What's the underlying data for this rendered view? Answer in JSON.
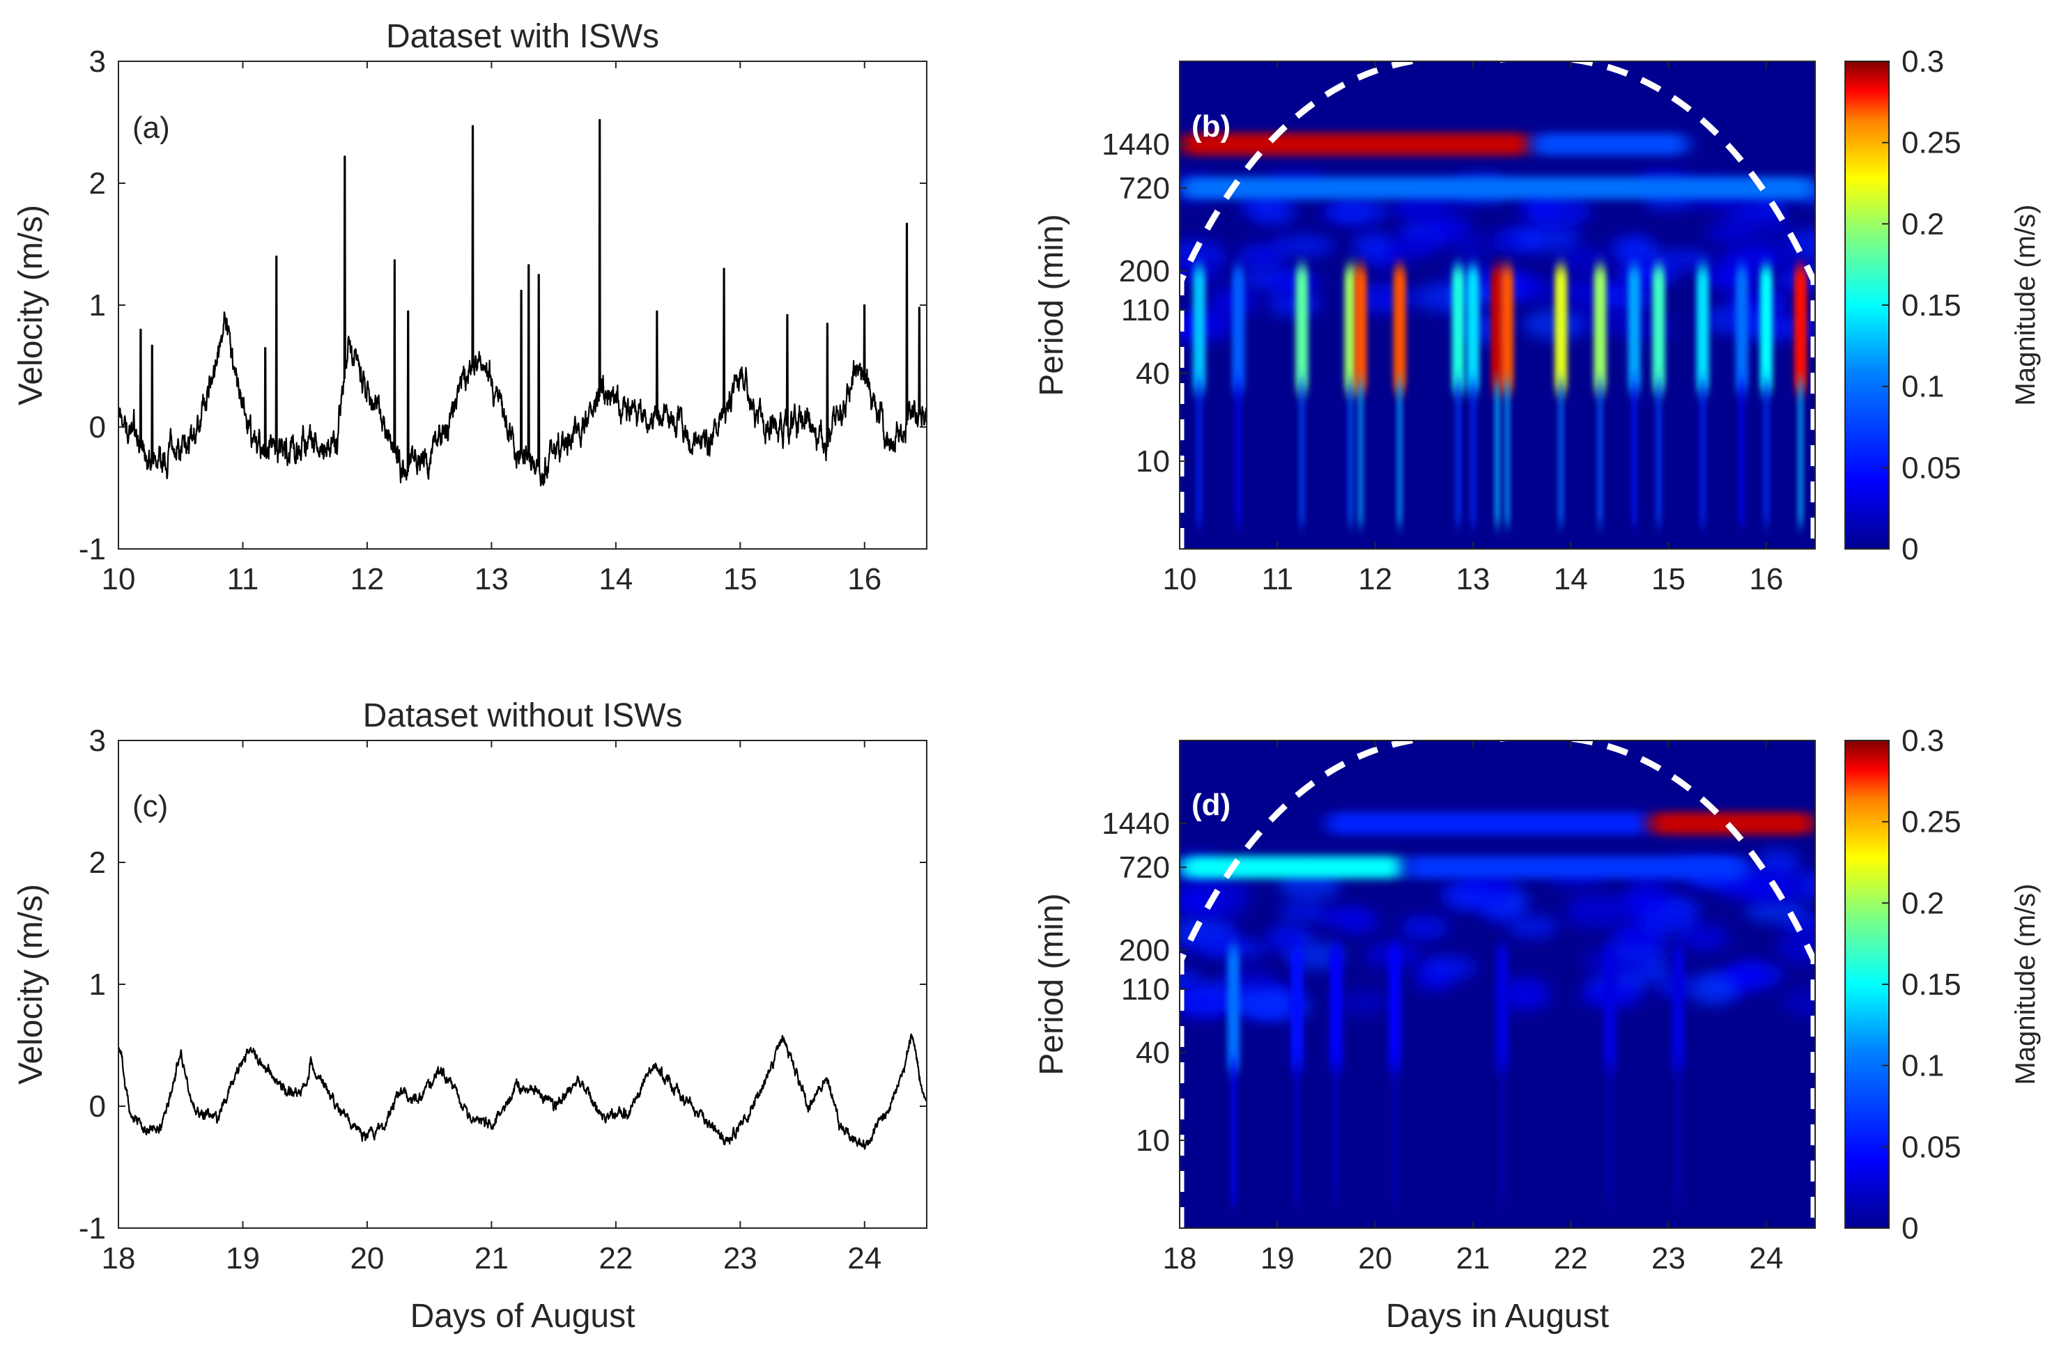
{
  "chart_data": [
    {
      "id": "a",
      "type": "line",
      "title": "Dataset with ISWs",
      "panel_label": "(a)",
      "xlabel": "",
      "ylabel": "Velocity (m/s)",
      "xlim": [
        10,
        16.5
      ],
      "ylim": [
        -1,
        3
      ],
      "xticks": [
        10,
        11,
        12,
        13,
        14,
        15,
        16
      ],
      "yticks": [
        -1,
        0,
        1,
        2,
        3
      ],
      "line_color": "#000000",
      "baseline": [
        [
          10.0,
          0.15
        ],
        [
          10.3,
          -0.3
        ],
        [
          10.6,
          -0.15
        ],
        [
          10.85,
          0.8
        ],
        [
          11.1,
          -0.2
        ],
        [
          11.5,
          -0.15
        ],
        [
          11.75,
          -0.2
        ],
        [
          11.85,
          0.65
        ],
        [
          12.3,
          -0.4
        ],
        [
          12.6,
          -0.1
        ],
        [
          12.9,
          0.6
        ],
        [
          13.2,
          -0.2
        ],
        [
          13.4,
          -0.3
        ],
        [
          13.7,
          -0.05
        ],
        [
          13.9,
          0.3
        ],
        [
          14.25,
          0.05
        ],
        [
          14.5,
          0.1
        ],
        [
          14.75,
          -0.2
        ],
        [
          15.0,
          0.45
        ],
        [
          15.2,
          -0.05
        ],
        [
          15.5,
          0.1
        ],
        [
          15.7,
          -0.15
        ],
        [
          15.95,
          0.5
        ],
        [
          16.2,
          -0.1
        ],
        [
          16.5,
          0.15
        ]
      ],
      "noise": [
        0.14,
        0.06
      ],
      "spikes": [
        [
          10.18,
          0.8
        ],
        [
          10.27,
          0.67
        ],
        [
          11.18,
          0.65
        ],
        [
          11.27,
          1.4
        ],
        [
          11.82,
          2.22
        ],
        [
          12.22,
          1.37
        ],
        [
          12.33,
          0.95
        ],
        [
          12.85,
          2.47
        ],
        [
          13.24,
          1.12
        ],
        [
          13.3,
          1.33
        ],
        [
          13.38,
          1.25
        ],
        [
          13.87,
          2.52
        ],
        [
          14.33,
          0.95
        ],
        [
          14.87,
          1.3
        ],
        [
          15.38,
          0.92
        ],
        [
          15.7,
          0.85
        ],
        [
          16.0,
          1.0
        ],
        [
          16.34,
          1.67
        ],
        [
          16.44,
          0.98
        ]
      ]
    },
    {
      "id": "b",
      "type": "heatmap",
      "title": "",
      "panel_label": "(b)",
      "xlabel": "",
      "ylabel": "Period (min)",
      "xlim": [
        10,
        16.5
      ],
      "xticks": [
        10,
        11,
        12,
        13,
        14,
        15,
        16
      ],
      "period_ticks": [
        1440,
        720,
        200,
        110,
        40,
        10
      ],
      "colorbar": {
        "label": "Magnitude (m/s)",
        "ticks": [
          "0",
          "0.05",
          "0.1",
          "0.15",
          "0.2",
          "0.25",
          "0.3"
        ],
        "range": [
          0,
          0.3
        ]
      },
      "colormap": [
        "#00008f",
        "#0000ff",
        "#00ffff",
        "#ffff00",
        "#ff0000",
        "#800000"
      ],
      "cone_color": "#ffffff",
      "bands": [
        {
          "x0": 10.0,
          "x1": 13.6,
          "period": 1440,
          "magnitude": 0.29
        },
        {
          "x0": 13.6,
          "x1": 15.2,
          "period": 1440,
          "magnitude": 0.08
        },
        {
          "x0": 10.0,
          "x1": 16.5,
          "period": 720,
          "magnitude": 0.1
        }
      ],
      "bursts": [
        [
          10.2,
          0.13
        ],
        [
          10.6,
          0.09
        ],
        [
          11.25,
          0.18
        ],
        [
          11.75,
          0.2
        ],
        [
          11.85,
          0.27
        ],
        [
          12.25,
          0.27
        ],
        [
          12.85,
          0.16
        ],
        [
          13.0,
          0.14
        ],
        [
          13.25,
          0.29
        ],
        [
          13.35,
          0.27
        ],
        [
          13.9,
          0.22
        ],
        [
          14.3,
          0.2
        ],
        [
          14.65,
          0.12
        ],
        [
          14.9,
          0.17
        ],
        [
          15.35,
          0.14
        ],
        [
          15.75,
          0.1
        ],
        [
          16.0,
          0.15
        ],
        [
          16.35,
          0.28
        ]
      ]
    },
    {
      "id": "c",
      "type": "line",
      "title": "Dataset without ISWs",
      "panel_label": "(c)",
      "xlabel": "Days of August",
      "ylabel": "Velocity (m/s)",
      "xlim": [
        18,
        24.5
      ],
      "ylim": [
        -1,
        3
      ],
      "xticks": [
        18,
        19,
        20,
        21,
        22,
        23,
        24
      ],
      "yticks": [
        -1,
        0,
        1,
        2,
        3
      ],
      "line_color": "#000000",
      "baseline": [
        [
          18.0,
          0.5
        ],
        [
          18.1,
          -0.05
        ],
        [
          18.2,
          -0.2
        ],
        [
          18.35,
          -0.15
        ],
        [
          18.5,
          0.45
        ],
        [
          18.6,
          0.0
        ],
        [
          18.8,
          -0.1
        ],
        [
          19.05,
          0.5
        ],
        [
          19.3,
          0.15
        ],
        [
          19.5,
          0.1
        ],
        [
          19.55,
          0.35
        ],
        [
          19.75,
          0.0
        ],
        [
          20.0,
          -0.25
        ],
        [
          20.15,
          -0.15
        ],
        [
          20.25,
          0.1
        ],
        [
          20.4,
          0.05
        ],
        [
          20.6,
          0.3
        ],
        [
          20.8,
          -0.05
        ],
        [
          21.0,
          -0.15
        ],
        [
          21.2,
          0.15
        ],
        [
          21.4,
          0.1
        ],
        [
          21.5,
          0.0
        ],
        [
          21.7,
          0.2
        ],
        [
          21.9,
          -0.1
        ],
        [
          22.1,
          -0.05
        ],
        [
          22.3,
          0.35
        ],
        [
          22.5,
          0.1
        ],
        [
          22.7,
          -0.1
        ],
        [
          22.9,
          -0.3
        ],
        [
          23.1,
          0.0
        ],
        [
          23.35,
          0.55
        ],
        [
          23.55,
          0.0
        ],
        [
          23.7,
          0.25
        ],
        [
          23.8,
          -0.15
        ],
        [
          24.0,
          -0.35
        ],
        [
          24.2,
          0.0
        ],
        [
          24.3,
          0.25
        ],
        [
          24.38,
          0.6
        ],
        [
          24.45,
          0.2
        ],
        [
          24.5,
          0.05
        ]
      ],
      "noise": [
        0.05,
        0.03
      ],
      "spikes": []
    },
    {
      "id": "d",
      "type": "heatmap",
      "title": "",
      "panel_label": "(d)",
      "xlabel": "Days in August",
      "ylabel": "Period (min)",
      "xlim": [
        18,
        24.5
      ],
      "xticks": [
        18,
        19,
        20,
        21,
        22,
        23,
        24
      ],
      "period_ticks": [
        1440,
        720,
        200,
        110,
        40,
        10
      ],
      "colorbar": {
        "label": "Magnitude (m/s)",
        "ticks": [
          "0",
          "0.05",
          "0.1",
          "0.15",
          "0.2",
          "0.25",
          "0.3"
        ],
        "range": [
          0,
          0.3
        ]
      },
      "colormap": [
        "#00008f",
        "#0000ff",
        "#00ffff",
        "#ffff00",
        "#ff0000",
        "#800000"
      ],
      "cone_color": "#ffffff",
      "bands": [
        {
          "x0": 19.5,
          "x1": 22.8,
          "period": 1440,
          "magnitude": 0.06
        },
        {
          "x0": 22.8,
          "x1": 24.5,
          "period": 1440,
          "magnitude": 0.29
        },
        {
          "x0": 18.0,
          "x1": 20.3,
          "period": 720,
          "magnitude": 0.15
        },
        {
          "x0": 20.3,
          "x1": 23.8,
          "period": 720,
          "magnitude": 0.07
        }
      ],
      "bursts": [
        [
          18.55,
          0.1
        ],
        [
          19.2,
          0.05
        ],
        [
          19.6,
          0.04
        ],
        [
          20.2,
          0.04
        ],
        [
          21.3,
          0.03
        ],
        [
          22.4,
          0.03
        ],
        [
          23.1,
          0.03
        ]
      ]
    }
  ]
}
